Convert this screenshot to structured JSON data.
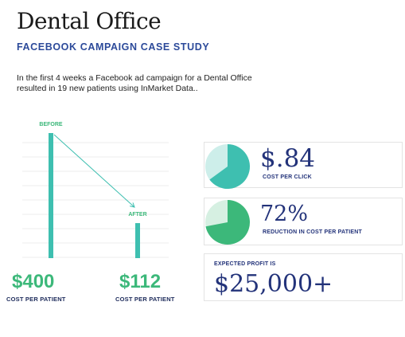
{
  "header": {
    "title": "Dental Office",
    "subtitle": "FACEBOOK CAMPAIGN CASE STUDY",
    "intro": "In the first 4 weeks a Facebook ad campaign for a Dental Office resulted in 19 new patients using InMarket Data.."
  },
  "chart_data": {
    "type": "bar",
    "categories": [
      "BEFORE",
      "AFTER"
    ],
    "values": [
      400,
      112
    ],
    "value_labels": [
      "$400",
      "$112"
    ],
    "sublabels": [
      "COST PER PATIENT",
      "COST PER PATIENT"
    ],
    "ylim": [
      0,
      400
    ],
    "grid": true,
    "bar_color": "#3ebfb0",
    "value_color": "#3cb87a",
    "arrow": true
  },
  "metrics": [
    {
      "value": "$.84",
      "label": "COST PER CLICK",
      "pie_share": 0.65,
      "pie_color": "#3ebfb0",
      "pie_bg": "#cdeeea"
    },
    {
      "value": "72%",
      "label": "REDUCTION IN COST PER PATIENT",
      "pie_share": 0.72,
      "pie_color": "#3cb87a",
      "pie_bg": "#d6f0e2"
    }
  ],
  "profit": {
    "label": "EXPECTED PROFIT IS",
    "value": "$25,000+"
  },
  "colors": {
    "navy": "#23337a",
    "teal": "#3ebfb0",
    "green": "#3cb87a"
  }
}
